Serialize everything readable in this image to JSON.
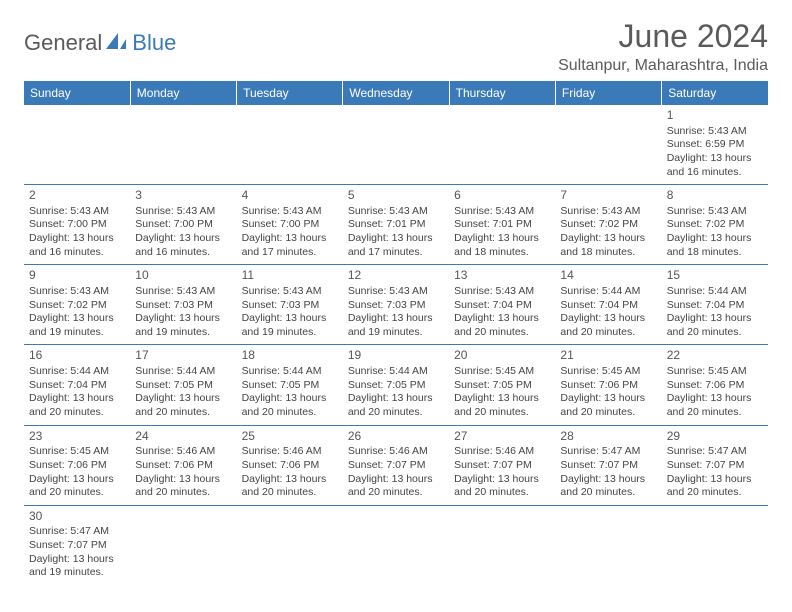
{
  "logo": {
    "text1": "General",
    "text2": "Blue"
  },
  "title": "June 2024",
  "location": "Sultanpur, Maharashtra, India",
  "colors": {
    "header_bg": "#3a7ab8",
    "header_text": "#ffffff",
    "border": "#3a7ab8",
    "text": "#444444",
    "title_color": "#5a5a5a"
  },
  "weekdays": [
    "Sunday",
    "Monday",
    "Tuesday",
    "Wednesday",
    "Thursday",
    "Friday",
    "Saturday"
  ],
  "weeks": [
    [
      null,
      null,
      null,
      null,
      null,
      null,
      {
        "day": "1",
        "sunrise": "5:43 AM",
        "sunset": "6:59 PM",
        "daylight": "13 hours and 16 minutes."
      }
    ],
    [
      {
        "day": "2",
        "sunrise": "5:43 AM",
        "sunset": "7:00 PM",
        "daylight": "13 hours and 16 minutes."
      },
      {
        "day": "3",
        "sunrise": "5:43 AM",
        "sunset": "7:00 PM",
        "daylight": "13 hours and 16 minutes."
      },
      {
        "day": "4",
        "sunrise": "5:43 AM",
        "sunset": "7:00 PM",
        "daylight": "13 hours and 17 minutes."
      },
      {
        "day": "5",
        "sunrise": "5:43 AM",
        "sunset": "7:01 PM",
        "daylight": "13 hours and 17 minutes."
      },
      {
        "day": "6",
        "sunrise": "5:43 AM",
        "sunset": "7:01 PM",
        "daylight": "13 hours and 18 minutes."
      },
      {
        "day": "7",
        "sunrise": "5:43 AM",
        "sunset": "7:02 PM",
        "daylight": "13 hours and 18 minutes."
      },
      {
        "day": "8",
        "sunrise": "5:43 AM",
        "sunset": "7:02 PM",
        "daylight": "13 hours and 18 minutes."
      }
    ],
    [
      {
        "day": "9",
        "sunrise": "5:43 AM",
        "sunset": "7:02 PM",
        "daylight": "13 hours and 19 minutes."
      },
      {
        "day": "10",
        "sunrise": "5:43 AM",
        "sunset": "7:03 PM",
        "daylight": "13 hours and 19 minutes."
      },
      {
        "day": "11",
        "sunrise": "5:43 AM",
        "sunset": "7:03 PM",
        "daylight": "13 hours and 19 minutes."
      },
      {
        "day": "12",
        "sunrise": "5:43 AM",
        "sunset": "7:03 PM",
        "daylight": "13 hours and 19 minutes."
      },
      {
        "day": "13",
        "sunrise": "5:43 AM",
        "sunset": "7:04 PM",
        "daylight": "13 hours and 20 minutes."
      },
      {
        "day": "14",
        "sunrise": "5:44 AM",
        "sunset": "7:04 PM",
        "daylight": "13 hours and 20 minutes."
      },
      {
        "day": "15",
        "sunrise": "5:44 AM",
        "sunset": "7:04 PM",
        "daylight": "13 hours and 20 minutes."
      }
    ],
    [
      {
        "day": "16",
        "sunrise": "5:44 AM",
        "sunset": "7:04 PM",
        "daylight": "13 hours and 20 minutes."
      },
      {
        "day": "17",
        "sunrise": "5:44 AM",
        "sunset": "7:05 PM",
        "daylight": "13 hours and 20 minutes."
      },
      {
        "day": "18",
        "sunrise": "5:44 AM",
        "sunset": "7:05 PM",
        "daylight": "13 hours and 20 minutes."
      },
      {
        "day": "19",
        "sunrise": "5:44 AM",
        "sunset": "7:05 PM",
        "daylight": "13 hours and 20 minutes."
      },
      {
        "day": "20",
        "sunrise": "5:45 AM",
        "sunset": "7:05 PM",
        "daylight": "13 hours and 20 minutes."
      },
      {
        "day": "21",
        "sunrise": "5:45 AM",
        "sunset": "7:06 PM",
        "daylight": "13 hours and 20 minutes."
      },
      {
        "day": "22",
        "sunrise": "5:45 AM",
        "sunset": "7:06 PM",
        "daylight": "13 hours and 20 minutes."
      }
    ],
    [
      {
        "day": "23",
        "sunrise": "5:45 AM",
        "sunset": "7:06 PM",
        "daylight": "13 hours and 20 minutes."
      },
      {
        "day": "24",
        "sunrise": "5:46 AM",
        "sunset": "7:06 PM",
        "daylight": "13 hours and 20 minutes."
      },
      {
        "day": "25",
        "sunrise": "5:46 AM",
        "sunset": "7:06 PM",
        "daylight": "13 hours and 20 minutes."
      },
      {
        "day": "26",
        "sunrise": "5:46 AM",
        "sunset": "7:07 PM",
        "daylight": "13 hours and 20 minutes."
      },
      {
        "day": "27",
        "sunrise": "5:46 AM",
        "sunset": "7:07 PM",
        "daylight": "13 hours and 20 minutes."
      },
      {
        "day": "28",
        "sunrise": "5:47 AM",
        "sunset": "7:07 PM",
        "daylight": "13 hours and 20 minutes."
      },
      {
        "day": "29",
        "sunrise": "5:47 AM",
        "sunset": "7:07 PM",
        "daylight": "13 hours and 20 minutes."
      }
    ],
    [
      {
        "day": "30",
        "sunrise": "5:47 AM",
        "sunset": "7:07 PM",
        "daylight": "13 hours and 19 minutes."
      },
      null,
      null,
      null,
      null,
      null,
      null
    ]
  ],
  "labels": {
    "sunrise": "Sunrise:",
    "sunset": "Sunset:",
    "daylight": "Daylight:"
  }
}
